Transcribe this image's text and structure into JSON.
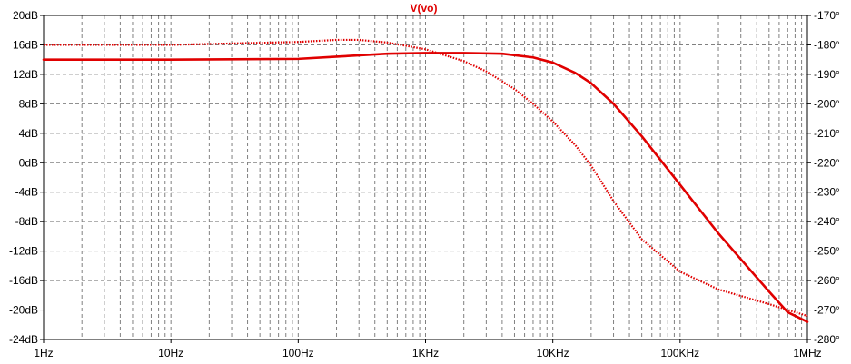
{
  "chart_data": {
    "type": "line",
    "title": "V(vo)",
    "title_color": "#e00000",
    "x_scale": "log",
    "xlim": [
      1,
      1000000
    ],
    "x_ticks": [
      {
        "value": 1,
        "label": "1Hz"
      },
      {
        "value": 10,
        "label": "10Hz"
      },
      {
        "value": 100,
        "label": "100Hz"
      },
      {
        "value": 1000,
        "label": "1KHz"
      },
      {
        "value": 10000,
        "label": "10KHz"
      },
      {
        "value": 100000,
        "label": "100KHz"
      },
      {
        "value": 1000000,
        "label": "1MHz"
      }
    ],
    "ylim_left": [
      -24,
      20
    ],
    "y_ticks_left": [
      {
        "value": 20,
        "label": "20dB"
      },
      {
        "value": 16,
        "label": "16dB"
      },
      {
        "value": 12,
        "label": "12dB"
      },
      {
        "value": 8,
        "label": "8dB"
      },
      {
        "value": 4,
        "label": "4dB"
      },
      {
        "value": 0,
        "label": "0dB"
      },
      {
        "value": -4,
        "label": "-4dB"
      },
      {
        "value": -8,
        "label": "-8dB"
      },
      {
        "value": -12,
        "label": "-12dB"
      },
      {
        "value": -16,
        "label": "-16dB"
      },
      {
        "value": -20,
        "label": "-20dB"
      },
      {
        "value": -24,
        "label": "-24dB"
      }
    ],
    "ylim_right": [
      -280,
      -170
    ],
    "y_ticks_right": [
      {
        "value": -170,
        "label": "-170°"
      },
      {
        "value": -180,
        "label": "-180°"
      },
      {
        "value": -190,
        "label": "-190°"
      },
      {
        "value": -200,
        "label": "-200°"
      },
      {
        "value": -210,
        "label": "-210°"
      },
      {
        "value": -220,
        "label": "-220°"
      },
      {
        "value": -230,
        "label": "-230°"
      },
      {
        "value": -240,
        "label": "-240°"
      },
      {
        "value": -250,
        "label": "-250°"
      },
      {
        "value": -260,
        "label": "-260°"
      },
      {
        "value": -270,
        "label": "-270°"
      },
      {
        "value": -280,
        "label": "-280°"
      }
    ],
    "grid": true,
    "series": [
      {
        "axis": "left",
        "style": "solid",
        "color": "#e00000",
        "x": [
          1,
          10,
          100,
          200,
          500,
          1000,
          2000,
          4000,
          7000,
          10000,
          15000,
          20000,
          30000,
          50000,
          70000,
          100000,
          200000,
          300000,
          500000,
          700000,
          1000000
        ],
        "y": [
          14,
          14,
          14.1,
          14.4,
          14.8,
          14.9,
          14.9,
          14.8,
          14.3,
          13.6,
          12.2,
          10.8,
          8.0,
          3.6,
          0.4,
          -3.0,
          -9.6,
          -13.1,
          -17.5,
          -20.3,
          -21.6
        ]
      },
      {
        "axis": "right",
        "style": "dotted",
        "color": "#e00000",
        "x": [
          1,
          10,
          100,
          200,
          300,
          500,
          1000,
          2000,
          3000,
          5000,
          7000,
          10000,
          15000,
          20000,
          30000,
          50000,
          100000,
          200000,
          500000,
          1000000
        ],
        "y": [
          -180,
          -180,
          -179,
          -178.3,
          -178.3,
          -179.2,
          -181.5,
          -185.5,
          -189,
          -195,
          -200,
          -206,
          -214,
          -221,
          -233,
          -246,
          -257,
          -263,
          -268,
          -272
        ]
      }
    ]
  }
}
